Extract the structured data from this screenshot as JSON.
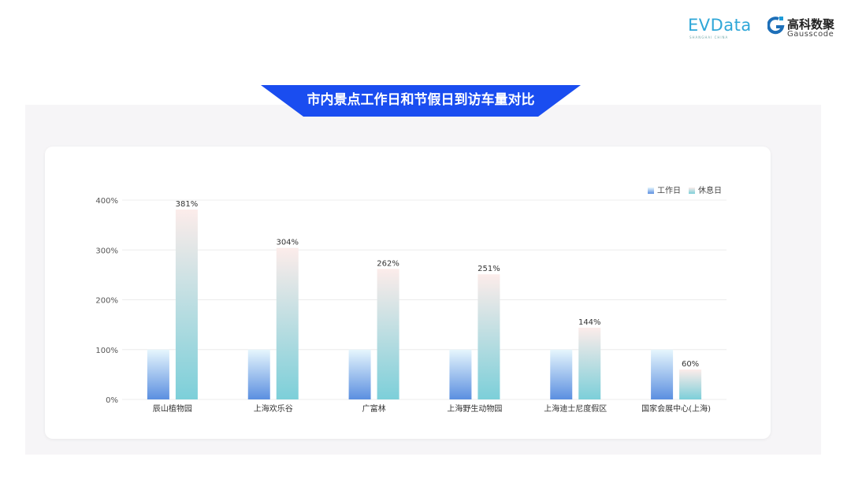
{
  "logos": {
    "evdata": "EVData",
    "evdata_sub": "SHANGHAI CHINA",
    "gausscode_cn": "高科数聚",
    "gausscode_en": "Gausscode"
  },
  "title": "市内景点工作日和节假日到访车量对比",
  "colors": {
    "banner": "#1a4df0",
    "workday_top": "#e6f6fd",
    "workday_bottom": "#5b8fe0",
    "rest_top": "#fcecea",
    "rest_bottom": "#7ccfd9"
  },
  "chart_data": {
    "type": "bar",
    "categories": [
      "辰山植物园",
      "上海欢乐谷",
      "广富林",
      "上海野生动物园",
      "上海迪士尼度假区",
      "国家会展中心(上海)"
    ],
    "series": [
      {
        "name": "工作日",
        "values": [
          100,
          100,
          100,
          100,
          100,
          100
        ]
      },
      {
        "name": "休息日",
        "values": [
          381,
          304,
          262,
          251,
          144,
          60
        ],
        "labels": [
          "381%",
          "304%",
          "262%",
          "251%",
          "144%",
          "60%"
        ]
      }
    ],
    "ylim": [
      0,
      400
    ],
    "yticks": [
      "0%",
      "100%",
      "200%",
      "300%",
      "400%"
    ],
    "grid": true,
    "legend": "top-right"
  }
}
